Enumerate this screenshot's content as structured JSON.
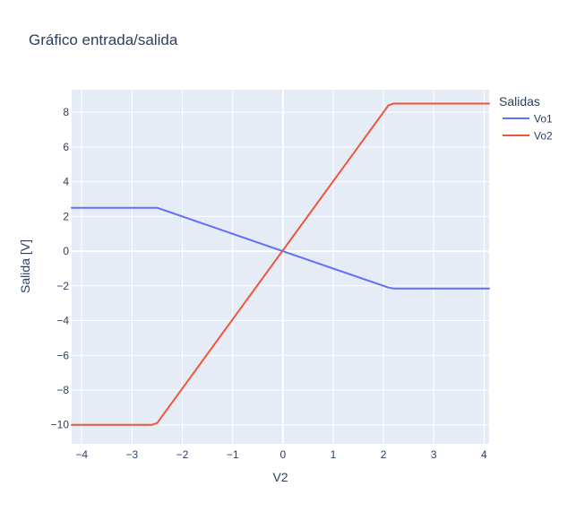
{
  "chart_data": {
    "type": "line",
    "title": "Gráfico entrada/salida",
    "xlabel": "V2",
    "ylabel": "Salida [V]",
    "xlim": [
      -4.2,
      4.1
    ],
    "ylim": [
      -11.1,
      9.3
    ],
    "xticks": [
      -4,
      -3,
      -2,
      -1,
      0,
      1,
      2,
      3,
      4
    ],
    "xtick_labels": [
      "−4",
      "−3",
      "−2",
      "−1",
      "0",
      "1",
      "2",
      "3",
      "4"
    ],
    "yticks": [
      -10,
      -8,
      -6,
      -4,
      -2,
      0,
      2,
      4,
      6,
      8
    ],
    "ytick_labels": [
      "−10",
      "−8",
      "−6",
      "−4",
      "−2",
      "0",
      "2",
      "4",
      "6",
      "8"
    ],
    "grid": true,
    "legend": {
      "title": "Salidas",
      "position": "top-right",
      "entries": [
        "Vo1",
        "Vo2"
      ]
    },
    "plot_bgcolor": "#E5ECF6",
    "series": [
      {
        "name": "Vo1",
        "color": "#636EFA",
        "x": [
          -4.2,
          -2.5,
          2.1,
          2.2,
          4.1
        ],
        "y": [
          2.5,
          2.5,
          -2.1,
          -2.15,
          -2.15
        ]
      },
      {
        "name": "Vo2",
        "color": "#EF553B",
        "x": [
          -4.2,
          -2.6,
          -2.5,
          2.1,
          2.2,
          4.1
        ],
        "y": [
          -10,
          -10,
          -9.9,
          8.4,
          8.5,
          8.5
        ]
      }
    ]
  }
}
